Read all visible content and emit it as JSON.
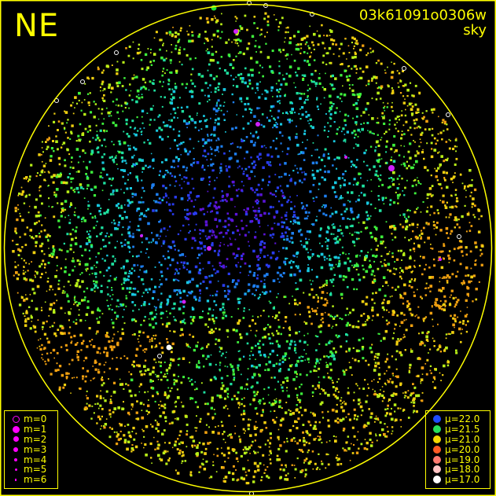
{
  "header": {
    "orientation": "NE",
    "image_id": "03k61091o0306w",
    "image_type": "sky"
  },
  "colors": {
    "frame": "#ffff00",
    "background": "#000000",
    "star_magnitude_marker": "#ff00ff"
  },
  "magnitude_legend": [
    {
      "label": "m=0",
      "marker": "hollow-circle"
    },
    {
      "label": "m=1",
      "marker": "dot"
    },
    {
      "label": "m=2",
      "marker": "dot"
    },
    {
      "label": "m=3",
      "marker": "dot"
    },
    {
      "label": "m=4",
      "marker": "dot"
    },
    {
      "label": "m=5",
      "marker": "dot"
    },
    {
      "label": "m=6",
      "marker": "dot"
    }
  ],
  "surface_brightness_legend": [
    {
      "label": "μ=22.0",
      "color": "#1f4bff"
    },
    {
      "label": "μ=21.5",
      "color": "#27e05a"
    },
    {
      "label": "μ=21.0",
      "color": "#f5d800"
    },
    {
      "label": "μ=20.0",
      "color": "#ff5a24"
    },
    {
      "label": "μ=19.0",
      "color": "#ff7a70"
    },
    {
      "label": "μ=18.0",
      "color": "#ffc4c4"
    },
    {
      "label": "μ=17.0",
      "color": "#ffffff"
    }
  ]
}
